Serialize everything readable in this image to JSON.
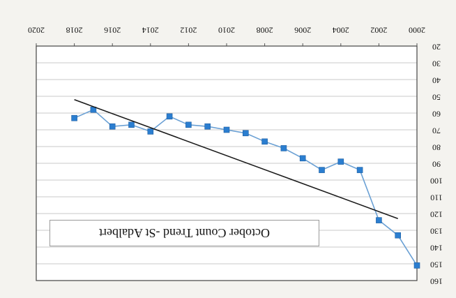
{
  "chart_data": {
    "type": "line",
    "title": "October Count Trend -St Adalbert",
    "xlabel": "",
    "ylabel": "",
    "xlim": [
      2000,
      2020
    ],
    "ylim": [
      20,
      160
    ],
    "x_ticks": [
      "2000",
      "2002",
      "2004",
      "2006",
      "2008",
      "2010",
      "2012",
      "2014",
      "2016",
      "2018",
      "2020"
    ],
    "y_ticks": [
      "20",
      "30",
      "40",
      "50",
      "60",
      "70",
      "80",
      "90",
      "100",
      "110",
      "120",
      "130",
      "140",
      "150",
      "160"
    ],
    "grid": true,
    "orientation": "rotated 180 degrees",
    "series": [
      {
        "x": [
          2000,
          2001,
          2002,
          2003,
          2004,
          2005,
          2006,
          2007,
          2008,
          2009,
          2010,
          2011,
          2012,
          2013,
          2014,
          2015,
          2016,
          2017,
          2018
        ],
        "values": [
          151,
          133,
          124,
          94,
          89,
          94,
          87,
          81,
          77,
          72,
          70,
          68,
          67,
          62,
          71,
          67,
          68,
          58,
          63
        ],
        "color": "#6aa0d4",
        "marker": "square",
        "marker_color": "#2b7ed0"
      }
    ],
    "trendline": {
      "x": [
        2001,
        2018
      ],
      "values": [
        123,
        52
      ],
      "color": "#1a1a1a"
    }
  }
}
